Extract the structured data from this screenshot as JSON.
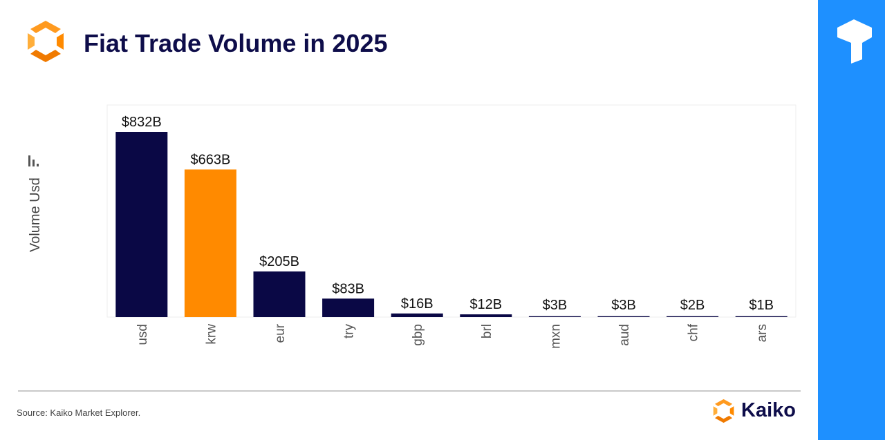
{
  "title": "Fiat Trade Volume in 2025",
  "source": "Source: Kaiko Market Explorer.",
  "brand_name": "Kaiko",
  "colors": {
    "navy": "#0a0845",
    "orange": "#ff8a00",
    "band": "#1e90ff",
    "title": "#0e0d4a"
  },
  "icons": {
    "header_logo": "kaiko-hexagon-logo-icon",
    "band_mark": "t-shaped-logo-icon",
    "ylabel_mark": "bar-chart-icon",
    "footer_logo": "kaiko-hexagon-logo-icon"
  },
  "chart_data": {
    "type": "bar",
    "title": "Fiat Trade Volume in 2025",
    "xlabel": "",
    "ylabel": "Volume Usd",
    "categories": [
      "usd",
      "krw",
      "eur",
      "try",
      "gbp",
      "brl",
      "mxn",
      "aud",
      "chf",
      "ars"
    ],
    "values": [
      832,
      663,
      205,
      83,
      16,
      12,
      3,
      3,
      2,
      1
    ],
    "value_labels": [
      "$832B",
      "$663B",
      "$205B",
      "$83B",
      "$16B",
      "$12B",
      "$3B",
      "$3B",
      "$2B",
      "$1B"
    ],
    "unit": "billion USD",
    "highlight_category": "krw",
    "bar_colors": [
      "#0a0845",
      "#ff8a00",
      "#0a0845",
      "#0a0845",
      "#0a0845",
      "#0a0845",
      "#0a0845",
      "#0a0845",
      "#0a0845",
      "#0a0845"
    ],
    "ylim": [
      0,
      950
    ],
    "grid": false,
    "legend": "none"
  }
}
